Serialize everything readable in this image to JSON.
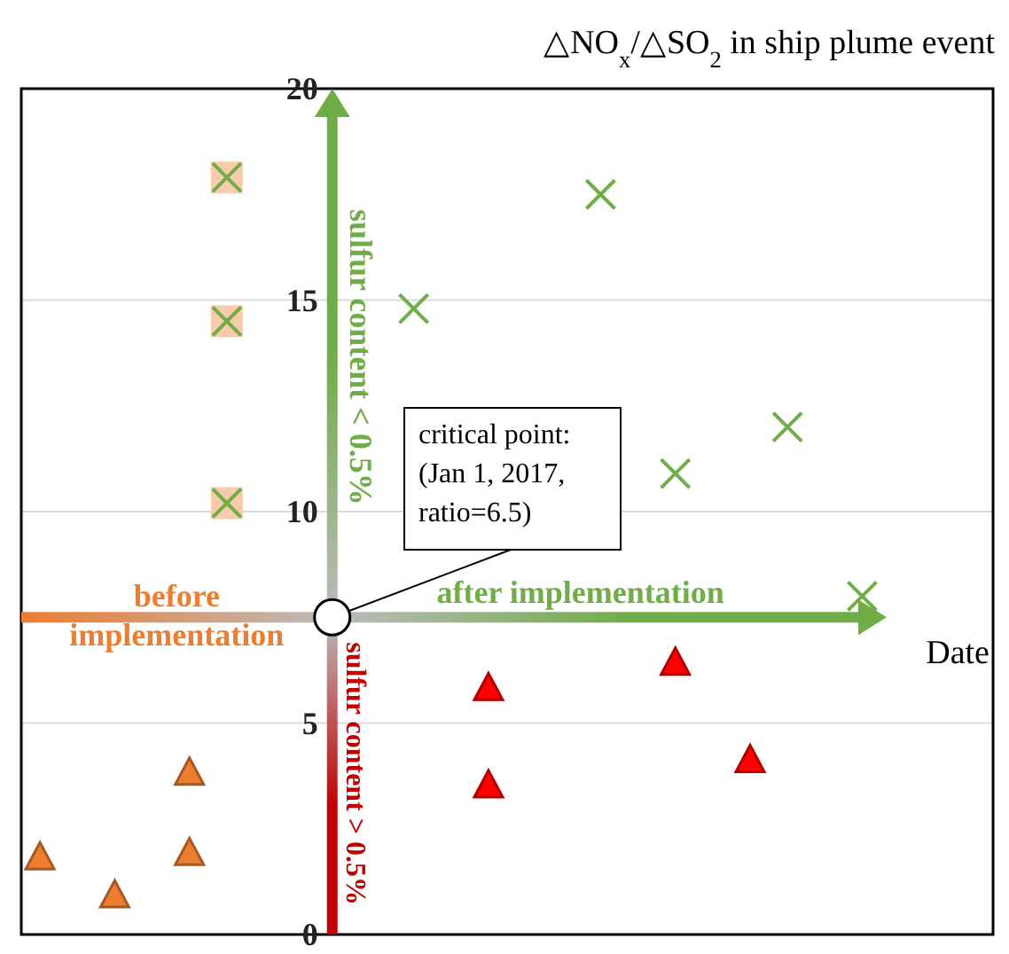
{
  "chart_data": {
    "type": "scatter",
    "title": "△NO$_{x}$/△SO$_{2}$ in ship plume event",
    "xlabel": "Date",
    "categories": [
      null,
      null,
      null,
      null,
      null,
      null,
      null,
      null,
      null,
      null,
      null,
      null,
      null,
      null,
      null,
      null,
      null,
      null,
      null,
      null,
      null,
      null,
      null,
      null,
      null,
      null
    ],
    "ylim": [
      0,
      20
    ],
    "yticks": [
      0,
      5,
      10,
      15,
      20
    ],
    "tick_labels": "y",
    "grid": "y",
    "series": [
      {
        "color": "#f8cbad",
        "marker": "square",
        "values": [
          null,
          null,
          null,
          null,
          null,
          17.9,
          null,
          null,
          null,
          null,
          null,
          null,
          null,
          null,
          null,
          null,
          null,
          null,
          null,
          null,
          null,
          null,
          null,
          null,
          null,
          null
        ]
      },
      {
        "color": "#f8cbad",
        "marker": "square",
        "values": [
          null,
          null,
          null,
          null,
          null,
          14.5,
          null,
          null,
          null,
          null,
          null,
          null,
          null,
          null,
          null,
          null,
          null,
          null,
          null,
          null,
          null,
          null,
          null,
          null,
          null,
          null
        ]
      },
      {
        "color": "#f8cbad",
        "marker": "square",
        "values": [
          null,
          null,
          null,
          null,
          null,
          10.2,
          null,
          null,
          null,
          null,
          null,
          null,
          null,
          null,
          null,
          null,
          null,
          null,
          null,
          null,
          null,
          null,
          null,
          null,
          null,
          null
        ]
      },
      {
        "color": "#70ad47",
        "marker": "cross",
        "values": [
          null,
          null,
          null,
          null,
          null,
          17.9,
          null,
          null,
          null,
          null,
          14.8,
          null,
          null,
          null,
          null,
          17.5,
          null,
          10.9,
          null,
          null,
          12,
          null,
          8,
          null,
          null,
          null
        ]
      },
      {
        "color": "#70ad47",
        "marker": "cross",
        "values": [
          null,
          null,
          null,
          null,
          null,
          14.5,
          null,
          null,
          null,
          null,
          null,
          null,
          null,
          null,
          null,
          null,
          null,
          null,
          null,
          null,
          null,
          null,
          null,
          null,
          null,
          null
        ]
      },
      {
        "color": "#70ad47",
        "marker": "cross",
        "values": [
          null,
          null,
          null,
          null,
          null,
          10.2,
          null,
          null,
          null,
          null,
          null,
          null,
          null,
          null,
          null,
          null,
          null,
          null,
          null,
          null,
          null,
          null,
          null,
          null,
          null,
          null
        ]
      },
      {
        "color": "#ff0000",
        "marker": "triangle",
        "values": [
          null,
          null,
          null,
          null,
          null,
          null,
          null,
          null,
          null,
          null,
          null,
          null,
          5.8,
          null,
          null,
          null,
          null,
          6.4,
          null,
          4.1,
          null,
          null,
          null,
          null,
          null,
          null
        ]
      },
      {
        "color": "#ff0000",
        "marker": "triangle",
        "values": [
          null,
          null,
          null,
          null,
          null,
          null,
          null,
          null,
          null,
          null,
          null,
          null,
          3.5,
          null,
          null,
          null,
          null,
          null,
          null,
          null,
          null,
          null,
          null,
          null,
          null,
          null
        ]
      },
      {
        "color": "#ed7d31",
        "marker": "triangle",
        "values": [
          1.8,
          null,
          0.9,
          null,
          3.8,
          null,
          null,
          null,
          null,
          null,
          null,
          null,
          null,
          null,
          null,
          null,
          null,
          null,
          null,
          null,
          null,
          null,
          null,
          null,
          null,
          null
        ]
      },
      {
        "color": "#ed7d31",
        "marker": "triangle",
        "values": [
          null,
          null,
          null,
          null,
          1.9,
          null,
          null,
          null,
          null,
          null,
          null,
          null,
          null,
          null,
          null,
          null,
          null,
          null,
          null,
          null,
          null,
          null,
          null,
          null,
          null,
          null
        ]
      }
    ],
    "ref_lines": [
      {
        "axis": "y",
        "value": 7.5,
        "color": "#70ad47"
      }
    ],
    "annotations": [
      "critical point:\n(Jan 1, 2017,\nratio=6.5)",
      "after implementation",
      "before\nimplementation",
      "sulfur content < 0.5%",
      "sulfur content > 0.5%"
    ]
  }
}
